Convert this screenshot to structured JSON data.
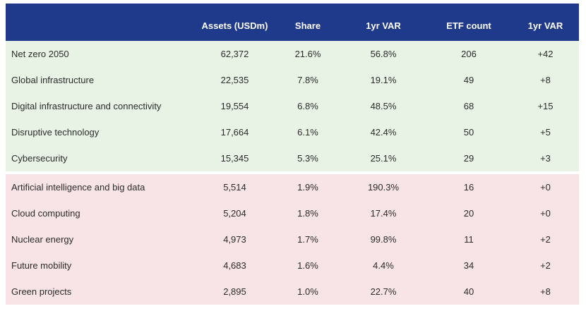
{
  "table": {
    "headers": [
      "",
      "Assets (USDm)",
      "Share",
      "1yr VAR",
      "ETF count",
      "1yr VAR"
    ],
    "top_rows": [
      {
        "name": "Net zero 2050",
        "assets": "62,372",
        "share": "21.6%",
        "var": "56.8%",
        "count": "206",
        "count_var": "+42"
      },
      {
        "name": "Global infrastructure",
        "assets": "22,535",
        "share": "7.8%",
        "var": "19.1%",
        "count": "49",
        "count_var": "+8"
      },
      {
        "name": "Digital infrastructure and connectivity",
        "assets": "19,554",
        "share": "6.8%",
        "var": "48.5%",
        "count": "68",
        "count_var": "+15"
      },
      {
        "name": "Disruptive technology",
        "assets": "17,664",
        "share": "6.1%",
        "var": "42.4%",
        "count": "50",
        "count_var": "+5"
      },
      {
        "name": "Cybersecurity",
        "assets": "15,345",
        "share": "5.3%",
        "var": "25.1%",
        "count": "29",
        "count_var": "+3"
      }
    ],
    "bottom_rows": [
      {
        "name": "Artificial intelligence and big data",
        "assets": "5,514",
        "share": "1.9%",
        "var": "190.3%",
        "count": "16",
        "count_var": "+0"
      },
      {
        "name": "Cloud computing",
        "assets": "5,204",
        "share": "1.8%",
        "var": "17.4%",
        "count": "20",
        "count_var": "+0"
      },
      {
        "name": "Nuclear energy",
        "assets": "4,973",
        "share": "1.7%",
        "var": "99.8%",
        "count": "11",
        "count_var": "+2"
      },
      {
        "name": "Future mobility",
        "assets": "4,683",
        "share": "1.6%",
        "var": "4.4%",
        "count": "34",
        "count_var": "+2"
      },
      {
        "name": "Green projects",
        "assets": "2,895",
        "share": "1.0%",
        "var": "22.7%",
        "count": "40",
        "count_var": "+8"
      }
    ]
  },
  "colors": {
    "header_bg": "#1f3a8a",
    "top_group_bg": "#e8f3e6",
    "bottom_group_bg": "#f8e4e6"
  }
}
